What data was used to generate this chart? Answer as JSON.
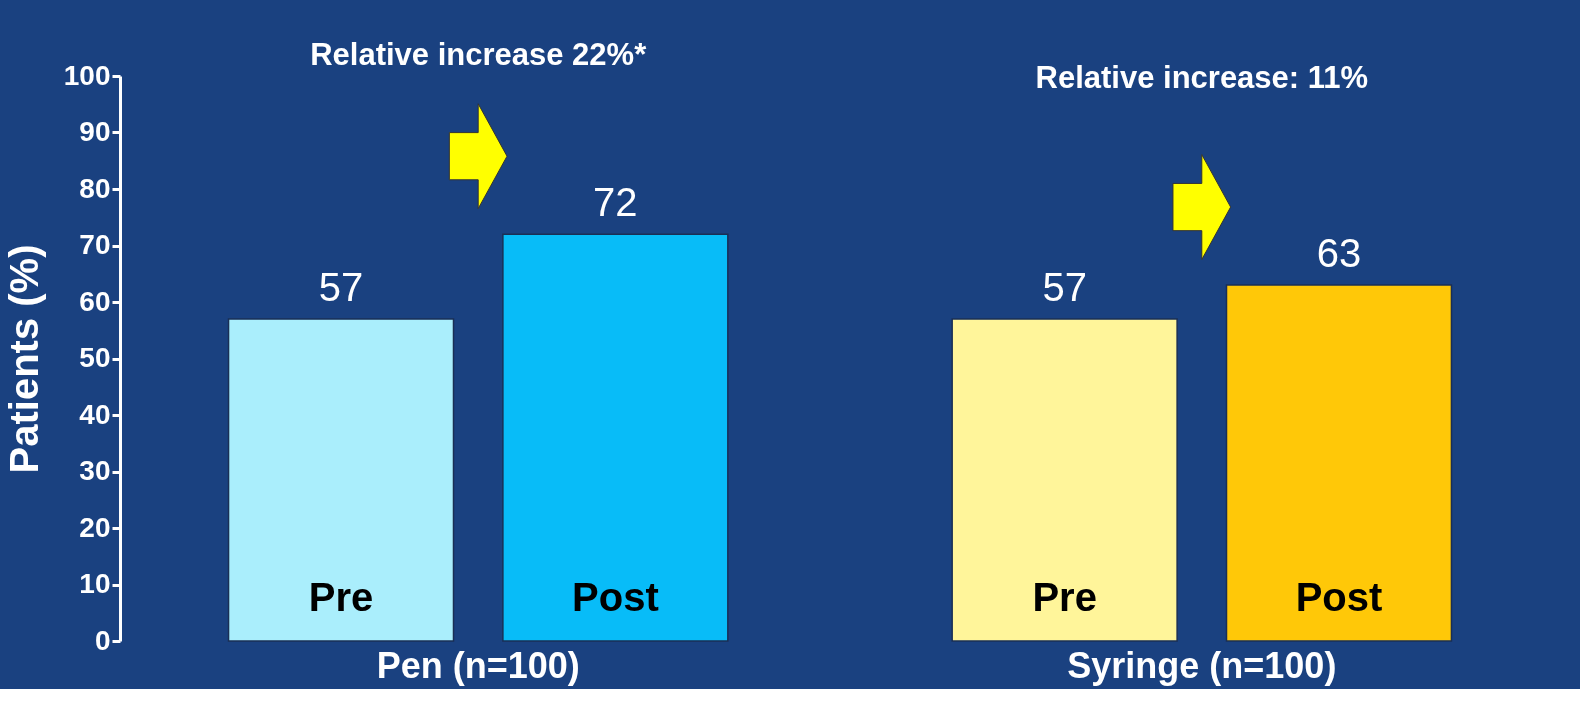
{
  "chart_data": {
    "type": "bar",
    "ylabel": "Patients (%)",
    "categories": [
      "Pen (n=100)",
      "Syringe (n=100)"
    ],
    "series": [
      {
        "name": "Pre",
        "colors": [
          "#aaeefc",
          "#fff59a"
        ],
        "values": [
          57,
          57
        ]
      },
      {
        "name": "Post",
        "colors": [
          "#08bcf8",
          "#ffc808"
        ],
        "values": [
          72,
          63
        ]
      }
    ],
    "ylim": [
      0,
      100
    ],
    "yticks": [
      0,
      10,
      20,
      30,
      40,
      50,
      60,
      70,
      80,
      90,
      100
    ],
    "data_labels": true,
    "grid": false,
    "annotations": [
      "Relative increase 22%*",
      "Relative increase: 11%"
    ]
  }
}
